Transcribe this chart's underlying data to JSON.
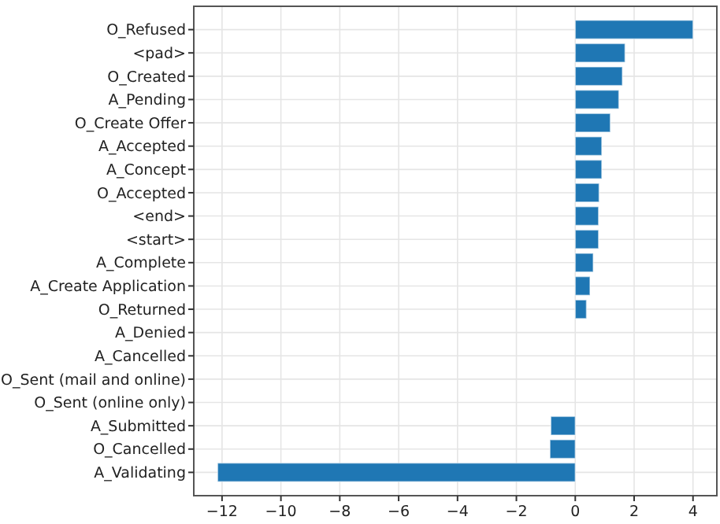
{
  "chart_data": {
    "type": "bar",
    "orientation": "horizontal",
    "categories": [
      "O_Refused",
      "<pad>",
      "O_Created",
      "A_Pending",
      "O_Create Offer",
      "A_Accepted",
      "A_Concept",
      "O_Accepted",
      "<end>",
      "<start>",
      "A_Complete",
      "A_Create Application",
      "O_Returned",
      "A_Denied",
      "A_Cancelled",
      "O_Sent (mail and online)",
      "O_Sent (online only)",
      "A_Submitted",
      "O_Cancelled",
      "A_Validating"
    ],
    "values": [
      4.0,
      1.69,
      1.6,
      1.48,
      1.19,
      0.9,
      0.9,
      0.81,
      0.79,
      0.79,
      0.61,
      0.5,
      0.38,
      0,
      0,
      0,
      0,
      -0.83,
      -0.86,
      -12.15
    ],
    "color": "#1f77b4",
    "xlim": [
      -12.96,
      4.81
    ],
    "xticks": [
      {
        "value": -12,
        "label": "−12"
      },
      {
        "value": -10,
        "label": "−10"
      },
      {
        "value": -8,
        "label": "−8"
      },
      {
        "value": -6,
        "label": "−6"
      },
      {
        "value": -4,
        "label": "−4"
      },
      {
        "value": -2,
        "label": "−2"
      },
      0,
      2,
      4
    ],
    "grid": true
  }
}
